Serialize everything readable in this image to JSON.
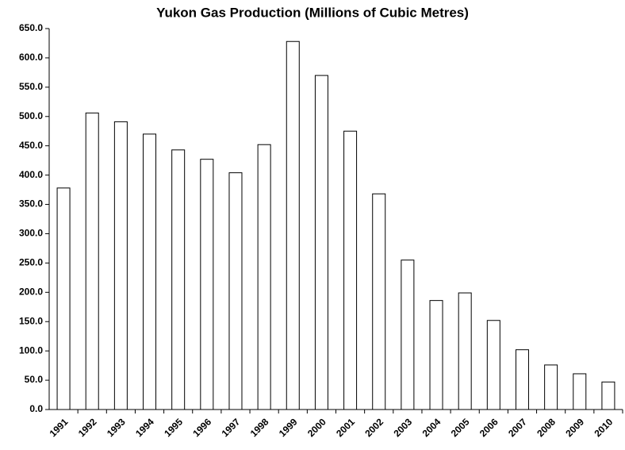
{
  "chart_data": {
    "type": "bar",
    "title": "Yukon Gas Production (Millions of Cubic Metres)",
    "categories": [
      "1991",
      "1992",
      "1993",
      "1994",
      "1995",
      "1996",
      "1997",
      "1998",
      "1999",
      "2000",
      "2001",
      "2002",
      "2003",
      "2004",
      "2005",
      "2006",
      "2007",
      "2008",
      "2009",
      "2010"
    ],
    "values": [
      378,
      506,
      491,
      470,
      443,
      427,
      404,
      452,
      628,
      570,
      475,
      368,
      255,
      186,
      199,
      152,
      102,
      76,
      61,
      47
    ],
    "color": "#ffffff",
    "edge_color": "#000000",
    "ylim": [
      0,
      650
    ],
    "yticks": [
      {
        "value": 0,
        "label": "0.0"
      },
      {
        "value": 50,
        "label": "50.0"
      },
      {
        "value": 100,
        "label": "100.0"
      },
      {
        "value": 150,
        "label": "150.0"
      },
      {
        "value": 200,
        "label": "200.0"
      },
      {
        "value": 250,
        "label": "250.0"
      },
      {
        "value": 300,
        "label": "300.0"
      },
      {
        "value": 350,
        "label": "350.0"
      },
      {
        "value": 400,
        "label": "400.0"
      },
      {
        "value": 450,
        "label": "450.0"
      },
      {
        "value": 500,
        "label": "500.0"
      },
      {
        "value": 550,
        "label": "550.0"
      },
      {
        "value": 600,
        "label": "600.0"
      },
      {
        "value": 650,
        "label": "650.0"
      }
    ],
    "grid": false
  }
}
